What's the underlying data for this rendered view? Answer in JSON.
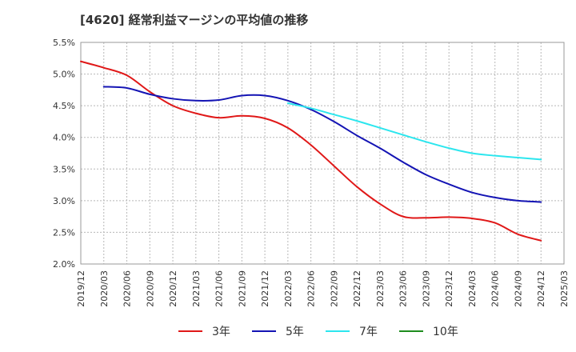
{
  "chart_data": {
    "type": "line",
    "title": "[4620]  経常利益マージンの平均値の推移",
    "xlabel": "",
    "ylabel": "",
    "ylim": [
      2.0,
      5.5
    ],
    "y_ticks": [
      "2.0%",
      "2.5%",
      "3.0%",
      "3.5%",
      "4.0%",
      "4.5%",
      "5.0%",
      "5.5%"
    ],
    "x_ticks": [
      "2019/12",
      "2020/03",
      "2020/06",
      "2020/09",
      "2020/12",
      "2021/03",
      "2021/06",
      "2021/09",
      "2021/12",
      "2022/03",
      "2022/06",
      "2022/09",
      "2022/12",
      "2023/03",
      "2023/06",
      "2023/09",
      "2023/12",
      "2024/03",
      "2024/06",
      "2024/09",
      "2024/12",
      "2025/03"
    ],
    "grid": true,
    "legend_position": "bottom",
    "series": [
      {
        "name": "3年",
        "color": "#e01818",
        "points": [
          [
            "2019/12",
            5.2
          ],
          [
            "2020/03",
            5.1
          ],
          [
            "2020/06",
            4.98
          ],
          [
            "2020/09",
            4.72
          ],
          [
            "2020/12",
            4.5
          ],
          [
            "2021/03",
            4.38
          ],
          [
            "2021/06",
            4.31
          ],
          [
            "2021/09",
            4.34
          ],
          [
            "2021/12",
            4.3
          ],
          [
            "2022/03",
            4.15
          ],
          [
            "2022/06",
            3.88
          ],
          [
            "2022/09",
            3.55
          ],
          [
            "2022/12",
            3.22
          ],
          [
            "2023/03",
            2.95
          ],
          [
            "2023/06",
            2.75
          ],
          [
            "2023/09",
            2.73
          ],
          [
            "2023/12",
            2.74
          ],
          [
            "2024/03",
            2.72
          ],
          [
            "2024/06",
            2.65
          ],
          [
            "2024/09",
            2.47
          ],
          [
            "2024/12",
            2.37
          ]
        ]
      },
      {
        "name": "5年",
        "color": "#1414b4",
        "points": [
          [
            "2020/03",
            4.8
          ],
          [
            "2020/06",
            4.78
          ],
          [
            "2020/09",
            4.68
          ],
          [
            "2020/12",
            4.61
          ],
          [
            "2021/03",
            4.58
          ],
          [
            "2021/06",
            4.59
          ],
          [
            "2021/09",
            4.66
          ],
          [
            "2021/12",
            4.66
          ],
          [
            "2022/03",
            4.58
          ],
          [
            "2022/06",
            4.44
          ],
          [
            "2022/09",
            4.25
          ],
          [
            "2022/12",
            4.03
          ],
          [
            "2023/03",
            3.83
          ],
          [
            "2023/06",
            3.61
          ],
          [
            "2023/09",
            3.41
          ],
          [
            "2023/12",
            3.26
          ],
          [
            "2024/03",
            3.13
          ],
          [
            "2024/06",
            3.05
          ],
          [
            "2024/09",
            3.0
          ],
          [
            "2024/12",
            2.98
          ]
        ]
      },
      {
        "name": "7年",
        "color": "#2ce6ee",
        "points": [
          [
            "2022/03",
            4.54
          ],
          [
            "2022/06",
            4.46
          ],
          [
            "2022/09",
            4.36
          ],
          [
            "2022/12",
            4.26
          ],
          [
            "2023/03",
            4.15
          ],
          [
            "2023/06",
            4.04
          ],
          [
            "2023/09",
            3.93
          ],
          [
            "2023/12",
            3.83
          ],
          [
            "2024/03",
            3.75
          ],
          [
            "2024/06",
            3.71
          ],
          [
            "2024/09",
            3.68
          ],
          [
            "2024/12",
            3.65
          ]
        ]
      },
      {
        "name": "10年",
        "color": "#1e8c1e",
        "points": []
      }
    ]
  }
}
